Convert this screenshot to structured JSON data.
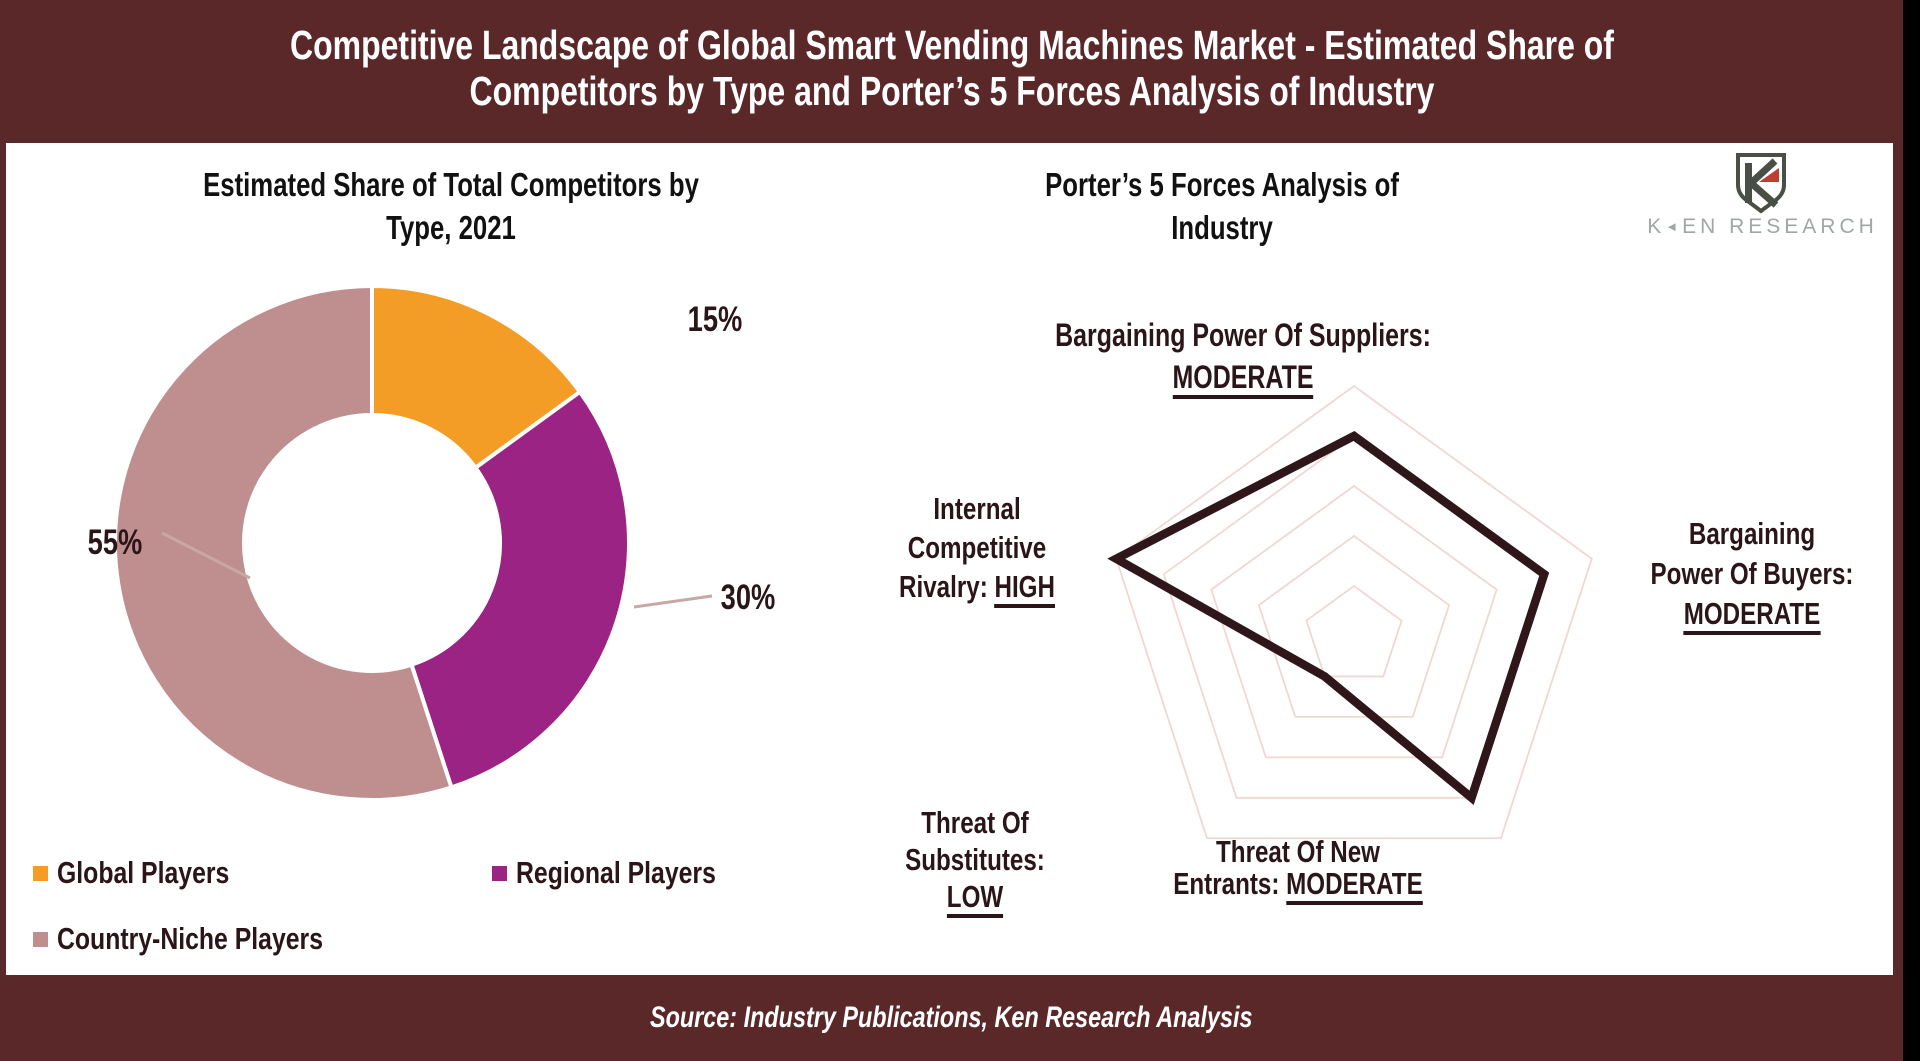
{
  "colors": {
    "maroon": "#5B2829",
    "dark_text": "#2A1518",
    "black_text": "#111111",
    "orange": "#F39C26",
    "purple": "#9B2383",
    "mauve": "#BF8E8F",
    "radar_grid": "#EFD8D4",
    "radar_polygon": "#2E161A",
    "leader_line": "#C9A7A5",
    "logo_grey": "#4A4F46",
    "logo_red": "#C23B33",
    "logo_wordmark_grey": "#A2A6A6"
  },
  "header": {
    "title": "Competitive Landscape of Global Smart Vending Machines Market - Estimated Share of Competitors by Type and Porter’s 5 Forces Analysis of Industry"
  },
  "donut_chart": {
    "title": "Estimated Share of Total Competitors by Type, 2021"
  },
  "radar_chart": {
    "title": "Porter’s 5 Forces Analysis of Industry",
    "labels": {
      "suppliers": {
        "text": "Bargaining Power Of Suppliers:",
        "value": "MODERATE"
      },
      "buyers": {
        "line1": "Bargaining",
        "line2": "Power Of Buyers:",
        "value": "MODERATE"
      },
      "new_entrants": {
        "line1": "Threat Of New",
        "line2_prefix": "Entrants:",
        "value": "MODERATE"
      },
      "substitutes": {
        "line1": "Threat Of",
        "line2": "Substitutes:",
        "value": "LOW"
      },
      "rivalry": {
        "line1": "Internal",
        "line2": "Competitive",
        "line3_prefix": "Rivalry:",
        "value": "HIGH"
      }
    }
  },
  "logo": {
    "wordmark_k": "K",
    "arrow_icon": "◄",
    "wordmark_rest": "EN RESEARCH"
  },
  "footer": {
    "source": "Source: Industry Publications, Ken Research Analysis"
  },
  "chart_data": [
    {
      "type": "pie",
      "subtype": "donut",
      "title": "Estimated Share of Total Competitors by Type, 2021",
      "categories": [
        "Global Players",
        "Regional Players",
        "Country-Niche Players"
      ],
      "values": [
        15,
        30,
        55
      ],
      "unit": "percent",
      "slice_labels": [
        "15%",
        "30%",
        "55%"
      ],
      "colors": [
        "#F39C26",
        "#9B2383",
        "#BF8E8F"
      ],
      "start_angle_deg": 90,
      "direction": "clockwise",
      "legend_position": "bottom-left"
    },
    {
      "type": "radar",
      "title": "Porter’s 5 Forces Analysis of Industry",
      "categories": [
        "Bargaining Power Of Suppliers",
        "Bargaining Power Of Buyers",
        "Threat Of New Entrants",
        "Threat Of Substitutes",
        "Internal Competitive Rivalry"
      ],
      "ratings": [
        "MODERATE",
        "MODERATE",
        "MODERATE",
        "LOW",
        "HIGH"
      ],
      "values": [
        4,
        4,
        4,
        1,
        5
      ],
      "axis_range": [
        0,
        5
      ],
      "gridlines": 5,
      "grid_shape": "pentagon",
      "grid_on": true,
      "legend_position": "none"
    }
  ]
}
